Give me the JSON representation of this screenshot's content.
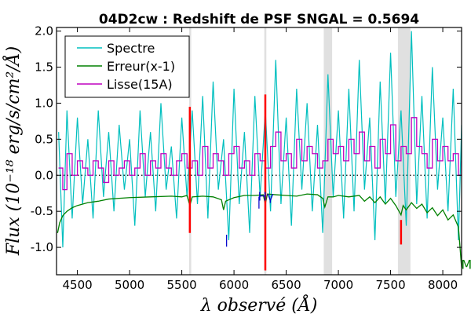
{
  "chart_data": {
    "type": "line",
    "title": "04D2cw : Redshift de PSF SNGAL = 0.5694",
    "xlabel": "λ observé (Å)",
    "ylabel": "Flux (10⁻¹⁸ erg/s/cm²/Å)",
    "xlim": [
      4300,
      8180
    ],
    "ylim": [
      -1.38,
      2.05
    ],
    "x_ticks": [
      4500,
      5000,
      5500,
      6000,
      6500,
      7000,
      7500,
      8000
    ],
    "y_ticks": [
      -1.0,
      -0.5,
      0.0,
      0.5,
      1.0,
      1.5,
      2.0
    ],
    "x_tick_labels": [
      "4500",
      "5000",
      "5500",
      "6000",
      "6500",
      "7000",
      "7500",
      "8000"
    ],
    "y_tick_labels": [
      "-1.0",
      "-0.5",
      "0.0",
      "0.5",
      "1.0",
      "1.5",
      "2.0"
    ],
    "legend": {
      "position": "top-left",
      "entries": [
        "Spectre",
        "Erreur(x-1)",
        "Lisse(15A)"
      ]
    },
    "colors": {
      "spectre": "#00bfbf",
      "erreur": "#008000",
      "lisse": "#bf00bf",
      "bands": "#e0e0e0",
      "sky_lines": "#ff0000",
      "annot": "#0000cc",
      "zero_line": "#000000"
    },
    "shaded_bands": [
      [
        5570,
        5590
      ],
      [
        6290,
        6310
      ],
      [
        6860,
        6940
      ],
      [
        7570,
        7690
      ]
    ],
    "sky_lines": [
      {
        "x": 5577,
        "y1": -0.8,
        "y2": 0.95
      },
      {
        "x": 6300,
        "y1": -1.32,
        "y2": 1.12
      },
      {
        "x": 7600,
        "y1": -0.96,
        "y2": -0.62
      }
    ],
    "annotations": [
      {
        "text": "Hγ",
        "x": 6230,
        "y": -0.35
      },
      {
        "text": "|",
        "x": 6220,
        "y": -0.42
      },
      {
        "text": "|",
        "x": 5910,
        "y": -0.95
      },
      {
        "text": "M",
        "x": 8175,
        "y": -1.3
      }
    ],
    "series": [
      {
        "name": "Spectre",
        "x": [
          4320,
          4360,
          4400,
          4450,
          4500,
          4550,
          4600,
          4650,
          4700,
          4750,
          4800,
          4850,
          4900,
          4950,
          5000,
          5050,
          5100,
          5150,
          5200,
          5250,
          5300,
          5350,
          5400,
          5450,
          5500,
          5550,
          5600,
          5650,
          5700,
          5750,
          5800,
          5850,
          5900,
          5950,
          6000,
          6050,
          6100,
          6150,
          6200,
          6250,
          6300,
          6350,
          6400,
          6450,
          6500,
          6550,
          6600,
          6650,
          6700,
          6750,
          6800,
          6850,
          6900,
          6950,
          7000,
          7050,
          7100,
          7150,
          7200,
          7250,
          7300,
          7350,
          7400,
          7450,
          7500,
          7550,
          7600,
          7650,
          7700,
          7750,
          7800,
          7850,
          7900,
          7950,
          8000,
          8050,
          8100,
          8150,
          8180
        ],
        "y": [
          0.6,
          -1.0,
          0.9,
          -0.6,
          0.8,
          -0.4,
          0.5,
          -0.6,
          0.9,
          -0.3,
          0.6,
          -0.5,
          0.7,
          -0.2,
          0.5,
          -0.7,
          0.9,
          -0.3,
          0.6,
          -0.5,
          1.0,
          -0.2,
          0.4,
          -0.6,
          0.8,
          -0.3,
          0.9,
          -0.4,
          1.1,
          -0.6,
          1.3,
          -0.2,
          0.5,
          -0.9,
          1.2,
          -0.4,
          0.6,
          -0.8,
          1.1,
          -0.3,
          0.9,
          -0.5,
          1.6,
          -0.4,
          0.8,
          -0.7,
          1.2,
          -0.2,
          1.0,
          -0.5,
          0.7,
          -0.8,
          1.4,
          -0.3,
          0.9,
          -0.6,
          1.2,
          -0.5,
          1.6,
          -0.2,
          0.8,
          -0.9,
          1.3,
          -0.4,
          1.7,
          -0.3,
          0.9,
          -0.7,
          2.0,
          -0.4,
          1.1,
          -0.6,
          1.5,
          -0.2,
          0.8,
          -0.5,
          1.2,
          -0.9,
          0.7
        ]
      },
      {
        "name": "Erreur(x-1)",
        "x": [
          4310,
          4330,
          4360,
          4400,
          4450,
          4500,
          4600,
          4700,
          4800,
          4900,
          5000,
          5200,
          5400,
          5500,
          5550,
          5577,
          5600,
          5700,
          5800,
          5880,
          5900,
          5920,
          6000,
          6100,
          6200,
          6280,
          6300,
          6320,
          6400,
          6500,
          6600,
          6700,
          6800,
          6850,
          6870,
          6900,
          6950,
          7000,
          7100,
          7200,
          7250,
          7300,
          7350,
          7400,
          7450,
          7500,
          7550,
          7600,
          7620,
          7650,
          7700,
          7750,
          7800,
          7850,
          7900,
          7950,
          8000,
          8050,
          8100,
          8150,
          8180
        ],
        "y": [
          -0.8,
          -0.66,
          -0.56,
          -0.5,
          -0.45,
          -0.42,
          -0.38,
          -0.36,
          -0.33,
          -0.32,
          -0.31,
          -0.3,
          -0.29,
          -0.3,
          -0.28,
          -0.42,
          -0.3,
          -0.29,
          -0.3,
          -0.34,
          -0.48,
          -0.36,
          -0.31,
          -0.28,
          -0.28,
          -0.27,
          -0.4,
          -0.26,
          -0.27,
          -0.28,
          -0.29,
          -0.26,
          -0.27,
          -0.32,
          -0.44,
          -0.3,
          -0.3,
          -0.28,
          -0.3,
          -0.28,
          -0.36,
          -0.3,
          -0.38,
          -0.3,
          -0.4,
          -0.32,
          -0.42,
          -0.55,
          -0.42,
          -0.48,
          -0.38,
          -0.46,
          -0.4,
          -0.52,
          -0.45,
          -0.56,
          -0.48,
          -0.62,
          -0.55,
          -0.72,
          -1.28
        ]
      },
      {
        "name": "Lisse(15A)",
        "x": [
          4320,
          4360,
          4400,
          4450,
          4500,
          4550,
          4600,
          4650,
          4700,
          4750,
          4800,
          4850,
          4900,
          4950,
          5000,
          5050,
          5100,
          5150,
          5200,
          5250,
          5300,
          5350,
          5400,
          5450,
          5500,
          5550,
          5600,
          5650,
          5700,
          5750,
          5800,
          5850,
          5900,
          5950,
          6000,
          6050,
          6100,
          6150,
          6200,
          6250,
          6300,
          6350,
          6400,
          6450,
          6500,
          6550,
          6600,
          6650,
          6700,
          6750,
          6800,
          6850,
          6900,
          6950,
          7000,
          7050,
          7100,
          7150,
          7200,
          7250,
          7300,
          7350,
          7400,
          7450,
          7500,
          7550,
          7600,
          7650,
          7700,
          7750,
          7800,
          7850,
          7900,
          7950,
          8000,
          8050,
          8100,
          8150,
          8180
        ],
        "y": [
          0.1,
          -0.2,
          0.3,
          0.0,
          0.2,
          0.1,
          0.0,
          0.2,
          0.1,
          -0.1,
          0.2,
          0.0,
          0.1,
          0.2,
          0.0,
          0.1,
          0.3,
          0.0,
          0.2,
          0.1,
          0.3,
          0.1,
          0.0,
          0.2,
          0.3,
          0.1,
          0.2,
          0.0,
          0.4,
          0.1,
          0.3,
          0.2,
          0.0,
          0.3,
          0.4,
          0.1,
          0.2,
          0.0,
          0.3,
          0.2,
          0.1,
          0.4,
          0.6,
          0.2,
          0.3,
          0.1,
          0.5,
          0.2,
          0.4,
          0.3,
          0.1,
          0.2,
          0.5,
          0.3,
          0.4,
          0.2,
          0.5,
          0.3,
          0.6,
          0.2,
          0.4,
          0.1,
          0.5,
          0.3,
          0.7,
          0.2,
          0.4,
          0.3,
          0.8,
          0.4,
          0.3,
          0.1,
          0.5,
          0.2,
          0.4,
          0.2,
          0.3,
          0.0,
          0.2
        ]
      }
    ]
  }
}
